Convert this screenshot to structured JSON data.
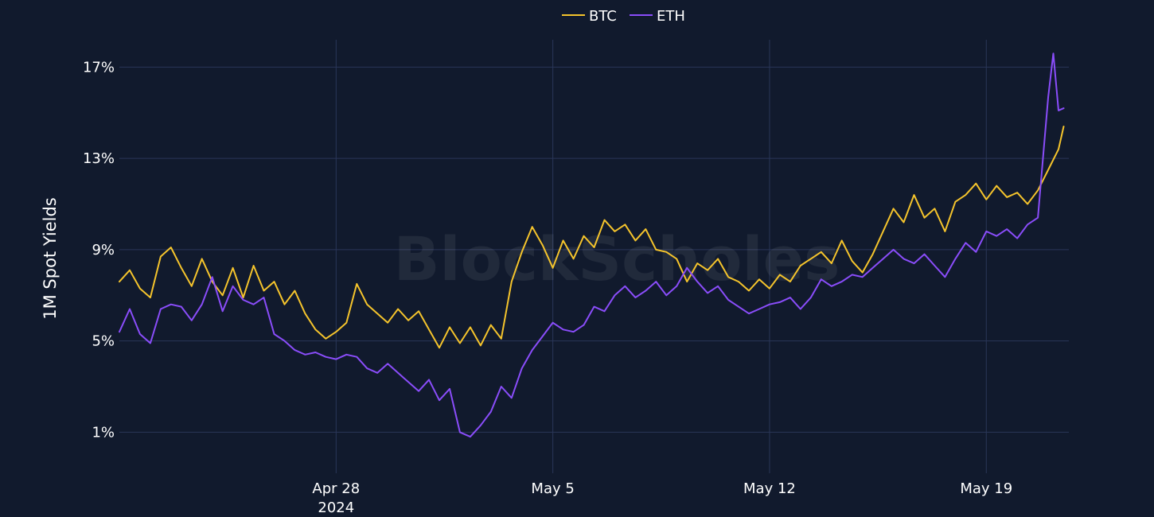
{
  "watermark": "BlockScholes",
  "colors": {
    "background": "#111a2d",
    "grid": "#2a3658",
    "text": "#ffffff"
  },
  "chart_data": {
    "type": "line",
    "title": "",
    "xlabel": "",
    "ylabel": "1M Spot Yields",
    "ylim": [
      -0.8,
      18.2
    ],
    "xlim": [
      "2024-04-21",
      "2024-05-21T16:00"
    ],
    "y_ticks": [
      {
        "value": 1,
        "label": "1%"
      },
      {
        "value": 5,
        "label": "5%"
      },
      {
        "value": 9,
        "label": "9%"
      },
      {
        "value": 13,
        "label": "13%"
      },
      {
        "value": 17,
        "label": "17%"
      }
    ],
    "x_ticks": [
      {
        "date": "2024-04-28",
        "label": "Apr 28",
        "sublabel": "2024"
      },
      {
        "date": "2024-05-05",
        "label": "May 5",
        "sublabel": ""
      },
      {
        "date": "2024-05-12",
        "label": "May 12",
        "sublabel": ""
      },
      {
        "date": "2024-05-19",
        "label": "May 19",
        "sublabel": ""
      }
    ],
    "legend": {
      "placement": "top-center"
    },
    "grid": true,
    "series": [
      {
        "name": "BTC",
        "color": "#f5c42c",
        "points": [
          [
            "2024-04-21T00:00",
            7.6
          ],
          [
            "2024-04-21T08:00",
            8.1
          ],
          [
            "2024-04-21T16:00",
            7.3
          ],
          [
            "2024-04-22T00:00",
            6.9
          ],
          [
            "2024-04-22T08:00",
            8.7
          ],
          [
            "2024-04-22T16:00",
            9.1
          ],
          [
            "2024-04-23T00:00",
            8.2
          ],
          [
            "2024-04-23T08:00",
            7.4
          ],
          [
            "2024-04-23T16:00",
            8.6
          ],
          [
            "2024-04-24T00:00",
            7.6
          ],
          [
            "2024-04-24T08:00",
            7.0
          ],
          [
            "2024-04-24T16:00",
            8.2
          ],
          [
            "2024-04-25T00:00",
            6.9
          ],
          [
            "2024-04-25T08:00",
            8.3
          ],
          [
            "2024-04-25T16:00",
            7.2
          ],
          [
            "2024-04-26T00:00",
            7.6
          ],
          [
            "2024-04-26T08:00",
            6.6
          ],
          [
            "2024-04-26T16:00",
            7.2
          ],
          [
            "2024-04-27T00:00",
            6.2
          ],
          [
            "2024-04-27T08:00",
            5.5
          ],
          [
            "2024-04-27T16:00",
            5.1
          ],
          [
            "2024-04-28T00:00",
            5.4
          ],
          [
            "2024-04-28T08:00",
            5.8
          ],
          [
            "2024-04-28T16:00",
            7.5
          ],
          [
            "2024-04-29T00:00",
            6.6
          ],
          [
            "2024-04-29T08:00",
            6.2
          ],
          [
            "2024-04-29T16:00",
            5.8
          ],
          [
            "2024-04-30T00:00",
            6.4
          ],
          [
            "2024-04-30T08:00",
            5.9
          ],
          [
            "2024-04-30T16:00",
            6.3
          ],
          [
            "2024-05-01T00:00",
            5.5
          ],
          [
            "2024-05-01T08:00",
            4.7
          ],
          [
            "2024-05-01T16:00",
            5.6
          ],
          [
            "2024-05-02T00:00",
            4.9
          ],
          [
            "2024-05-02T08:00",
            5.6
          ],
          [
            "2024-05-02T16:00",
            4.8
          ],
          [
            "2024-05-03T00:00",
            5.7
          ],
          [
            "2024-05-03T08:00",
            5.1
          ],
          [
            "2024-05-03T16:00",
            7.6
          ],
          [
            "2024-05-04T00:00",
            8.9
          ],
          [
            "2024-05-04T08:00",
            10.0
          ],
          [
            "2024-05-04T16:00",
            9.2
          ],
          [
            "2024-05-05T00:00",
            8.2
          ],
          [
            "2024-05-05T08:00",
            9.4
          ],
          [
            "2024-05-05T16:00",
            8.6
          ],
          [
            "2024-05-06T00:00",
            9.6
          ],
          [
            "2024-05-06T08:00",
            9.1
          ],
          [
            "2024-05-06T16:00",
            10.3
          ],
          [
            "2024-05-07T00:00",
            9.8
          ],
          [
            "2024-05-07T08:00",
            10.1
          ],
          [
            "2024-05-07T16:00",
            9.4
          ],
          [
            "2024-05-08T00:00",
            9.9
          ],
          [
            "2024-05-08T08:00",
            9.0
          ],
          [
            "2024-05-08T16:00",
            8.9
          ],
          [
            "2024-05-09T00:00",
            8.6
          ],
          [
            "2024-05-09T08:00",
            7.6
          ],
          [
            "2024-05-09T16:00",
            8.4
          ],
          [
            "2024-05-10T00:00",
            8.1
          ],
          [
            "2024-05-10T08:00",
            8.6
          ],
          [
            "2024-05-10T16:00",
            7.8
          ],
          [
            "2024-05-11T00:00",
            7.6
          ],
          [
            "2024-05-11T08:00",
            7.2
          ],
          [
            "2024-05-11T16:00",
            7.7
          ],
          [
            "2024-05-12T00:00",
            7.3
          ],
          [
            "2024-05-12T08:00",
            7.9
          ],
          [
            "2024-05-12T16:00",
            7.6
          ],
          [
            "2024-05-13T00:00",
            8.3
          ],
          [
            "2024-05-13T08:00",
            8.6
          ],
          [
            "2024-05-13T16:00",
            8.9
          ],
          [
            "2024-05-14T00:00",
            8.4
          ],
          [
            "2024-05-14T08:00",
            9.4
          ],
          [
            "2024-05-14T16:00",
            8.5
          ],
          [
            "2024-05-15T00:00",
            8.0
          ],
          [
            "2024-05-15T08:00",
            8.8
          ],
          [
            "2024-05-15T16:00",
            9.8
          ],
          [
            "2024-05-16T00:00",
            10.8
          ],
          [
            "2024-05-16T08:00",
            10.2
          ],
          [
            "2024-05-16T16:00",
            11.4
          ],
          [
            "2024-05-17T00:00",
            10.4
          ],
          [
            "2024-05-17T08:00",
            10.8
          ],
          [
            "2024-05-17T16:00",
            9.8
          ],
          [
            "2024-05-18T00:00",
            11.1
          ],
          [
            "2024-05-18T08:00",
            11.4
          ],
          [
            "2024-05-18T16:00",
            11.9
          ],
          [
            "2024-05-19T00:00",
            11.2
          ],
          [
            "2024-05-19T08:00",
            11.8
          ],
          [
            "2024-05-19T16:00",
            11.3
          ],
          [
            "2024-05-20T00:00",
            11.5
          ],
          [
            "2024-05-20T08:00",
            11.0
          ],
          [
            "2024-05-20T16:00",
            11.6
          ],
          [
            "2024-05-21T00:00",
            12.5
          ],
          [
            "2024-05-21T08:00",
            13.4
          ],
          [
            "2024-05-21T12:00",
            14.4
          ]
        ]
      },
      {
        "name": "ETH",
        "color": "#8a4dfa",
        "points": [
          [
            "2024-04-21T00:00",
            5.4
          ],
          [
            "2024-04-21T08:00",
            6.4
          ],
          [
            "2024-04-21T16:00",
            5.3
          ],
          [
            "2024-04-22T00:00",
            4.9
          ],
          [
            "2024-04-22T08:00",
            6.4
          ],
          [
            "2024-04-22T16:00",
            6.6
          ],
          [
            "2024-04-23T00:00",
            6.5
          ],
          [
            "2024-04-23T08:00",
            5.9
          ],
          [
            "2024-04-23T16:00",
            6.6
          ],
          [
            "2024-04-24T00:00",
            7.8
          ],
          [
            "2024-04-24T08:00",
            6.3
          ],
          [
            "2024-04-24T16:00",
            7.4
          ],
          [
            "2024-04-25T00:00",
            6.8
          ],
          [
            "2024-04-25T08:00",
            6.6
          ],
          [
            "2024-04-25T16:00",
            6.9
          ],
          [
            "2024-04-26T00:00",
            5.3
          ],
          [
            "2024-04-26T08:00",
            5.0
          ],
          [
            "2024-04-26T16:00",
            4.6
          ],
          [
            "2024-04-27T00:00",
            4.4
          ],
          [
            "2024-04-27T08:00",
            4.5
          ],
          [
            "2024-04-27T16:00",
            4.3
          ],
          [
            "2024-04-28T00:00",
            4.2
          ],
          [
            "2024-04-28T08:00",
            4.4
          ],
          [
            "2024-04-28T16:00",
            4.3
          ],
          [
            "2024-04-29T00:00",
            3.8
          ],
          [
            "2024-04-29T08:00",
            3.6
          ],
          [
            "2024-04-29T16:00",
            4.0
          ],
          [
            "2024-04-30T00:00",
            3.6
          ],
          [
            "2024-04-30T08:00",
            3.2
          ],
          [
            "2024-04-30T16:00",
            2.8
          ],
          [
            "2024-05-01T00:00",
            3.3
          ],
          [
            "2024-05-01T08:00",
            2.4
          ],
          [
            "2024-05-01T16:00",
            2.9
          ],
          [
            "2024-05-02T00:00",
            1.0
          ],
          [
            "2024-05-02T08:00",
            0.8
          ],
          [
            "2024-05-02T16:00",
            1.3
          ],
          [
            "2024-05-03T00:00",
            1.9
          ],
          [
            "2024-05-03T08:00",
            3.0
          ],
          [
            "2024-05-03T16:00",
            2.5
          ],
          [
            "2024-05-04T00:00",
            3.8
          ],
          [
            "2024-05-04T08:00",
            4.6
          ],
          [
            "2024-05-04T16:00",
            5.2
          ],
          [
            "2024-05-05T00:00",
            5.8
          ],
          [
            "2024-05-05T08:00",
            5.5
          ],
          [
            "2024-05-05T16:00",
            5.4
          ],
          [
            "2024-05-06T00:00",
            5.7
          ],
          [
            "2024-05-06T08:00",
            6.5
          ],
          [
            "2024-05-06T16:00",
            6.3
          ],
          [
            "2024-05-07T00:00",
            7.0
          ],
          [
            "2024-05-07T08:00",
            7.4
          ],
          [
            "2024-05-07T16:00",
            6.9
          ],
          [
            "2024-05-08T00:00",
            7.2
          ],
          [
            "2024-05-08T08:00",
            7.6
          ],
          [
            "2024-05-08T16:00",
            7.0
          ],
          [
            "2024-05-09T00:00",
            7.4
          ],
          [
            "2024-05-09T08:00",
            8.2
          ],
          [
            "2024-05-09T16:00",
            7.6
          ],
          [
            "2024-05-10T00:00",
            7.1
          ],
          [
            "2024-05-10T08:00",
            7.4
          ],
          [
            "2024-05-10T16:00",
            6.8
          ],
          [
            "2024-05-11T00:00",
            6.5
          ],
          [
            "2024-05-11T08:00",
            6.2
          ],
          [
            "2024-05-11T16:00",
            6.4
          ],
          [
            "2024-05-12T00:00",
            6.6
          ],
          [
            "2024-05-12T08:00",
            6.7
          ],
          [
            "2024-05-12T16:00",
            6.9
          ],
          [
            "2024-05-13T00:00",
            6.4
          ],
          [
            "2024-05-13T08:00",
            6.9
          ],
          [
            "2024-05-13T16:00",
            7.7
          ],
          [
            "2024-05-14T00:00",
            7.4
          ],
          [
            "2024-05-14T08:00",
            7.6
          ],
          [
            "2024-05-14T16:00",
            7.9
          ],
          [
            "2024-05-15T00:00",
            7.8
          ],
          [
            "2024-05-15T08:00",
            8.2
          ],
          [
            "2024-05-15T16:00",
            8.6
          ],
          [
            "2024-05-16T00:00",
            9.0
          ],
          [
            "2024-05-16T08:00",
            8.6
          ],
          [
            "2024-05-16T16:00",
            8.4
          ],
          [
            "2024-05-17T00:00",
            8.8
          ],
          [
            "2024-05-17T08:00",
            8.3
          ],
          [
            "2024-05-17T16:00",
            7.8
          ],
          [
            "2024-05-18T00:00",
            8.6
          ],
          [
            "2024-05-18T08:00",
            9.3
          ],
          [
            "2024-05-18T16:00",
            8.9
          ],
          [
            "2024-05-19T00:00",
            9.8
          ],
          [
            "2024-05-19T08:00",
            9.6
          ],
          [
            "2024-05-19T16:00",
            9.9
          ],
          [
            "2024-05-20T00:00",
            9.5
          ],
          [
            "2024-05-20T08:00",
            10.1
          ],
          [
            "2024-05-20T16:00",
            10.4
          ],
          [
            "2024-05-21T00:00",
            15.7
          ],
          [
            "2024-05-21T04:00",
            17.6
          ],
          [
            "2024-05-21T08:00",
            15.1
          ],
          [
            "2024-05-21T12:00",
            15.2
          ]
        ]
      }
    ]
  }
}
